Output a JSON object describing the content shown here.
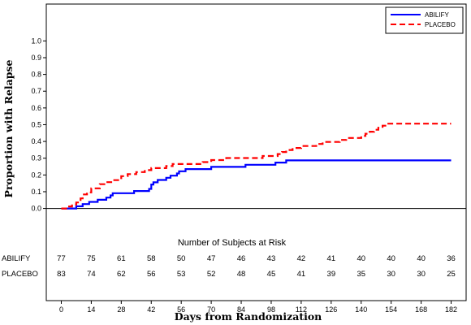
{
  "chart_data": {
    "type": "line",
    "subtype": "kaplan-meier-step",
    "xlabel": "Days from Randomization",
    "ylabel": "Proportion with Relapse",
    "xlim": [
      -7,
      189
    ],
    "ylim": [
      -0.55,
      1.22
    ],
    "x_ticks": [
      0,
      14,
      28,
      42,
      56,
      70,
      84,
      98,
      112,
      126,
      140,
      154,
      168,
      182
    ],
    "y_ticks": [
      0.0,
      0.1,
      0.2,
      0.3,
      0.4,
      0.5,
      0.6,
      0.7,
      0.8,
      0.9,
      1.0
    ],
    "y_tick_labels": [
      "0.0",
      "0.1",
      "0.2",
      "0.3",
      "0.4",
      "0.5",
      "0.6",
      "0.7",
      "0.8",
      "0.9",
      "1.0"
    ],
    "legend_position": "top-right",
    "reference_line_y": 0,
    "series": [
      {
        "name": "ABILIFY",
        "color": "#0000ff",
        "dash": "solid",
        "x": [
          0,
          5,
          7,
          9,
          10,
          12,
          13,
          17,
          19,
          21,
          23,
          24,
          32,
          34,
          36,
          41,
          42,
          43,
          45,
          48,
          49,
          51,
          52,
          54,
          55,
          58,
          60,
          63,
          65,
          70,
          72,
          75,
          78,
          82,
          86,
          89,
          93,
          97,
          100,
          105,
          110,
          115,
          120,
          130,
          140,
          150,
          160,
          170,
          182
        ],
        "y": [
          0.0,
          0.0,
          0.013,
          0.013,
          0.026,
          0.026,
          0.039,
          0.052,
          0.052,
          0.065,
          0.078,
          0.091,
          0.091,
          0.104,
          0.104,
          0.117,
          0.143,
          0.156,
          0.17,
          0.17,
          0.183,
          0.196,
          0.196,
          0.209,
          0.222,
          0.235,
          0.235,
          0.235,
          0.235,
          0.248,
          0.248,
          0.248,
          0.248,
          0.248,
          0.261,
          0.261,
          0.261,
          0.261,
          0.274,
          0.287,
          0.287,
          0.287,
          0.287,
          0.287,
          0.287,
          0.287,
          0.287,
          0.287,
          0.287
        ]
      },
      {
        "name": "PLACEBO",
        "color": "#ff0000",
        "dash": "dashed",
        "x": [
          0,
          3,
          5,
          7,
          9,
          10,
          12,
          14,
          18,
          21,
          24,
          28,
          31,
          35,
          39,
          42,
          45,
          49,
          52,
          56,
          60,
          63,
          66,
          70,
          73,
          77,
          80,
          84,
          87,
          91,
          94,
          98,
          101,
          103,
          105,
          108,
          112,
          116,
          119,
          122,
          126,
          130,
          133,
          137,
          140,
          142,
          144,
          146,
          148,
          150,
          152,
          154,
          160,
          170,
          182
        ],
        "y": [
          0.0,
          0.012,
          0.024,
          0.036,
          0.06,
          0.084,
          0.096,
          0.12,
          0.145,
          0.157,
          0.169,
          0.193,
          0.205,
          0.217,
          0.229,
          0.241,
          0.241,
          0.253,
          0.265,
          0.265,
          0.265,
          0.265,
          0.277,
          0.289,
          0.289,
          0.301,
          0.301,
          0.301,
          0.301,
          0.301,
          0.313,
          0.313,
          0.325,
          0.337,
          0.349,
          0.361,
          0.373,
          0.373,
          0.385,
          0.397,
          0.397,
          0.409,
          0.421,
          0.421,
          0.433,
          0.446,
          0.458,
          0.47,
          0.482,
          0.494,
          0.506,
          0.506,
          0.506,
          0.506,
          0.506
        ]
      }
    ],
    "risk_table": {
      "title": "Number of Subjects at Risk",
      "rows": [
        {
          "label": "ABILIFY",
          "values": [
            "77",
            "75",
            "61",
            "58",
            "50",
            "47",
            "46",
            "43",
            "42",
            "41",
            "40",
            "40",
            "40",
            "36"
          ]
        },
        {
          "label": "PLACEBO",
          "values": [
            "83",
            "74",
            "62",
            "56",
            "53",
            "52",
            "48",
            "45",
            "41",
            "39",
            "35",
            "30",
            "30",
            "25"
          ]
        }
      ]
    }
  }
}
